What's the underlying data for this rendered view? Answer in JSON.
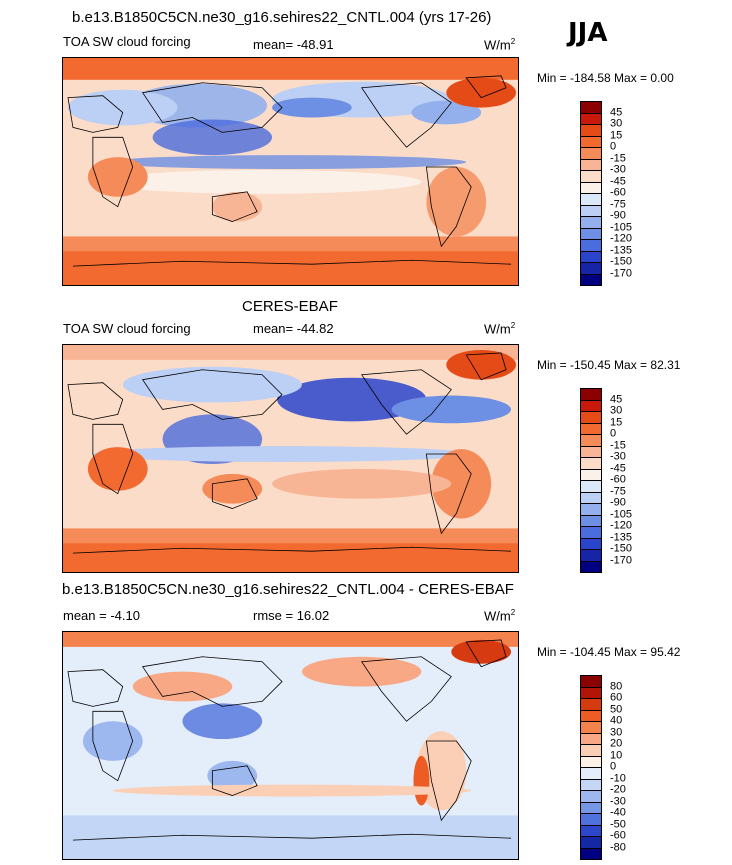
{
  "season": "JJA",
  "units": "W/m",
  "units_sup": "2",
  "panels": [
    {
      "title": "b.e13.B1850C5CN.ne30_g16.sehires22_CNTL.004 (yrs 17-26)",
      "left_label": "TOA SW cloud forcing",
      "stat_label": "mean= -48.91",
      "minmax": "Min = -184.58 Max =   0.00",
      "colorbar": {
        "labels": [
          "45",
          "30",
          "15",
          "0",
          "-15",
          "-30",
          "-45",
          "-60",
          "-75",
          "-90",
          "-105",
          "-120",
          "-135",
          "-150",
          "-170"
        ],
        "colors": [
          "#8b0000",
          "#c8190a",
          "#e54b16",
          "#f26a30",
          "#f58b58",
          "#f8b595",
          "#fbdcc8",
          "#fcf1e8",
          "#dbe8f8",
          "#bccff4",
          "#93b0ec",
          "#6d8fe4",
          "#4b6cdc",
          "#2a45cb",
          "#1625a8",
          "#000080"
        ]
      }
    },
    {
      "title": "CERES-EBAF",
      "left_label": "TOA SW cloud forcing",
      "stat_label": "mean= -44.82",
      "minmax": "Min = -150.45 Max =  82.31",
      "colorbar": {
        "labels": [
          "45",
          "30",
          "15",
          "0",
          "-15",
          "-30",
          "-45",
          "-60",
          "-75",
          "-90",
          "-105",
          "-120",
          "-135",
          "-150",
          "-170"
        ],
        "colors": [
          "#8b0000",
          "#c8190a",
          "#e54b16",
          "#f26a30",
          "#f58b58",
          "#f8b595",
          "#fbdcc8",
          "#fcf1e8",
          "#dbe8f8",
          "#bccff4",
          "#93b0ec",
          "#6d8fe4",
          "#4b6cdc",
          "#2a45cb",
          "#1625a8",
          "#000080"
        ]
      }
    },
    {
      "title": "b.e13.B1850C5CN.ne30_g16.sehires22_CNTL.004 - CERES-EBAF",
      "left_label": "mean =  -4.10",
      "stat_label": "rmse =  16.02",
      "minmax": "Min = -104.45 Max =  95.42",
      "colorbar": {
        "labels": [
          "80",
          "60",
          "50",
          "40",
          "30",
          "20",
          "10",
          "0",
          "-10",
          "-20",
          "-30",
          "-40",
          "-50",
          "-60",
          "-80"
        ],
        "colors": [
          "#8b0000",
          "#b31408",
          "#d63a10",
          "#ee5c25",
          "#f4824c",
          "#f8a884",
          "#fbcfb6",
          "#fdf0e6",
          "#e4eefa",
          "#c4d6f5",
          "#9db8ee",
          "#7696e6",
          "#5072dd",
          "#2c47c9",
          "#1428a4",
          "#000080"
        ]
      }
    }
  ]
}
